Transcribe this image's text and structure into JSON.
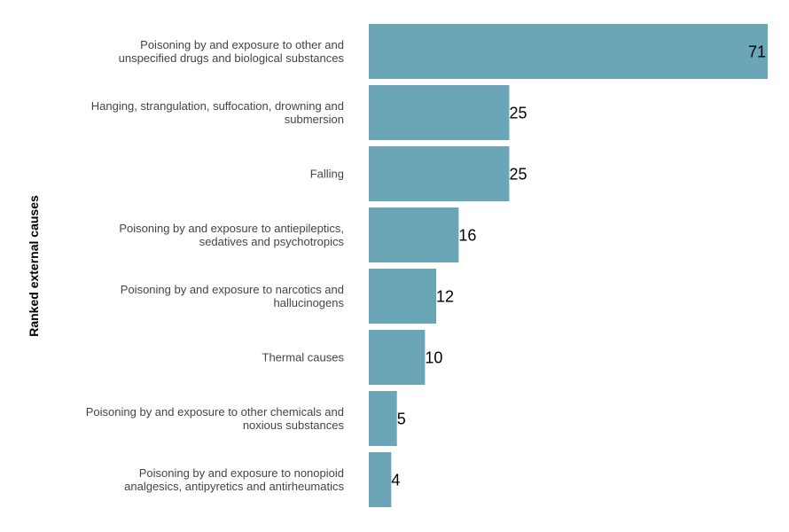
{
  "chart_data": {
    "type": "bar",
    "orientation": "horizontal",
    "ylabel": "Ranked external causes",
    "xlabel": "",
    "xlim": [
      0,
      71
    ],
    "grid": false,
    "legend": "none",
    "bar_color": "#6aa5b8",
    "categories": [
      [
        "Poisoning by and exposure to other and",
        "unspecified drugs and biological substances"
      ],
      [
        "Hanging, strangulation, suffocation, drowning and",
        "submersion"
      ],
      [
        "Falling"
      ],
      [
        "Poisoning by and exposure to antiepileptics,",
        "sedatives and psychotropics"
      ],
      [
        "Poisoning by and exposure to narcotics and",
        "hallucinogens"
      ],
      [
        "Thermal causes"
      ],
      [
        "Poisoning by and exposure to other chemicals and",
        "noxious substances"
      ],
      [
        "Poisoning by and exposure to nonopioid",
        "analgesics, antipyretics and antirheumatics"
      ]
    ],
    "values": [
      71,
      25,
      25,
      16,
      12,
      10,
      5,
      4
    ]
  }
}
